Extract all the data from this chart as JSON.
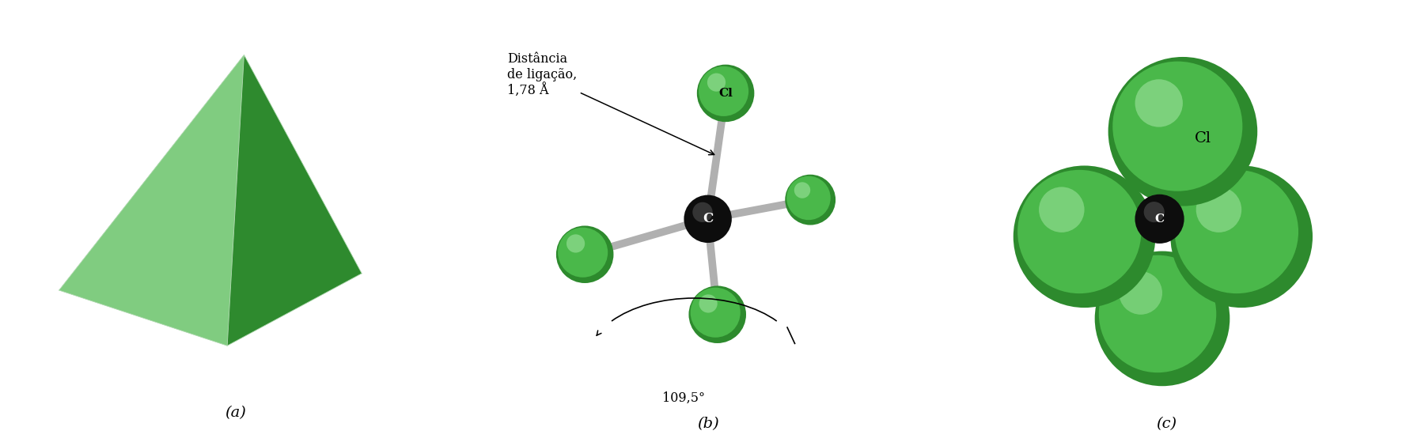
{
  "bg_color": "#ffffff",
  "label_a": "(a)",
  "label_b": "(b)",
  "label_c": "(c)",
  "label_fontsize": 14,
  "annotation_text_b": "Distância\nde ligação,\n1,78 Å",
  "annotation_fontsize": 11.5,
  "cl_label": "Cl",
  "c_label": "C",
  "angle_label": "109,5°",
  "green_outer": "#2d8a2d",
  "green_mid": "#4ab84a",
  "green_light": "#7dcf7d",
  "green_highlight": "#a8e8a8",
  "carbon_dark": "#0a0a0a",
  "carbon_mid": "#444444",
  "bond_color": "#b0b0b0",
  "bond_lw": 7
}
